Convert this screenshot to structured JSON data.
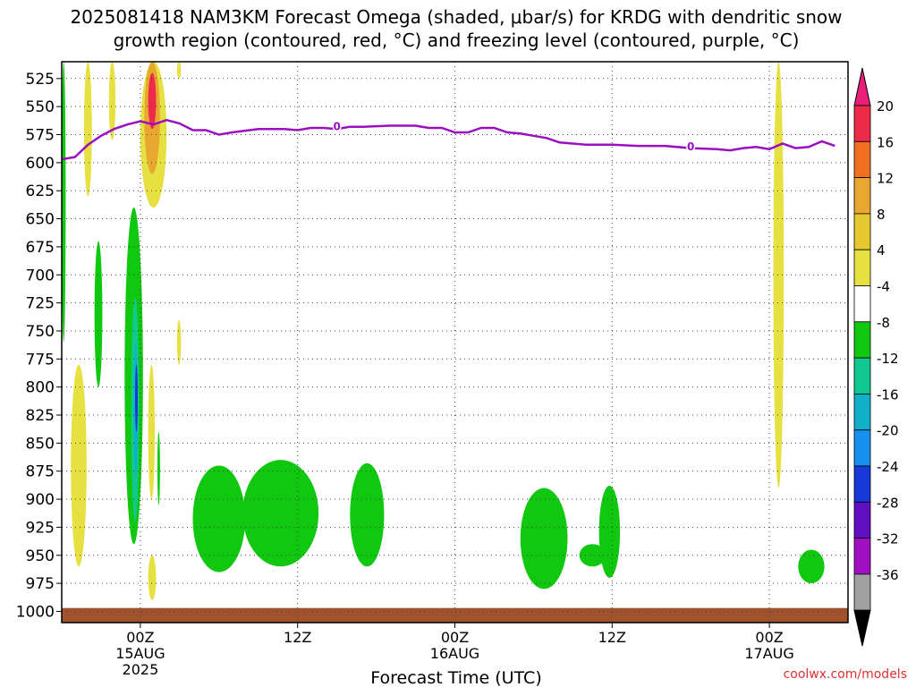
{
  "chart_data": {
    "type": "heatmap",
    "title_line1": "2025081418 NAM3KM Forecast Omega (shaded, μbar/s) for KRDG with dendritic snow",
    "title_line2": "growth region (contoured, red, °C) and freezing level (contoured, purple, °C)",
    "xlabel": "Forecast Time (UTC)",
    "ylabel": "",
    "credit": "coolwx.com/models",
    "x_unit": "forecast hour",
    "xlim": [
      0,
      60
    ],
    "ylim": [
      1010,
      510
    ],
    "y_ticks": [
      525,
      550,
      575,
      600,
      625,
      650,
      675,
      700,
      725,
      750,
      775,
      800,
      825,
      850,
      875,
      900,
      925,
      950,
      975,
      1000
    ],
    "x_ticks": [
      {
        "hour": 6,
        "label": "00Z",
        "date": "15AUG",
        "year": "2025"
      },
      {
        "hour": 18,
        "label": "12Z",
        "date": "",
        "year": ""
      },
      {
        "hour": 30,
        "label": "00Z",
        "date": "16AUG",
        "year": ""
      },
      {
        "hour": 42,
        "label": "12Z",
        "date": "",
        "year": ""
      },
      {
        "hour": 54,
        "label": "00Z",
        "date": "17AUG",
        "year": ""
      }
    ],
    "grid": true,
    "colorbar": {
      "labels": [
        "20",
        "16",
        "12",
        "8",
        "4",
        "-4",
        "-8",
        "-12",
        "-16",
        "-20",
        "-24",
        "-28",
        "-32",
        "-36"
      ],
      "colors": [
        "#ee2a4a",
        "#f07020",
        "#e8a830",
        "#e8c830",
        "#e6e040",
        "#ffffff",
        "#10c810",
        "#10c890",
        "#10b0c8",
        "#1890f0",
        "#1838d8",
        "#6010c0",
        "#a010c0",
        "#a0a0a0"
      ],
      "top_arrow_color": "#e8207a",
      "bottom_arrow_color": "#000000"
    },
    "freezing_level": {
      "label": "0",
      "color": "#9a10c0",
      "points": [
        [
          0,
          597
        ],
        [
          1,
          595
        ],
        [
          2,
          584
        ],
        [
          3,
          576
        ],
        [
          4,
          570
        ],
        [
          5,
          566
        ],
        [
          6,
          563
        ],
        [
          7,
          566
        ],
        [
          8,
          562
        ],
        [
          9,
          565
        ],
        [
          10,
          571
        ],
        [
          11,
          571
        ],
        [
          12,
          575
        ],
        [
          13,
          573
        ],
        [
          15,
          570
        ],
        [
          17,
          570
        ],
        [
          18,
          571
        ],
        [
          19,
          569
        ],
        [
          20,
          569
        ],
        [
          21,
          570
        ],
        [
          22,
          568
        ],
        [
          23,
          568
        ],
        [
          25,
          567
        ],
        [
          27,
          567
        ],
        [
          28,
          569
        ],
        [
          29,
          569
        ],
        [
          30,
          573
        ],
        [
          31,
          573
        ],
        [
          32,
          569
        ],
        [
          33,
          569
        ],
        [
          34,
          573
        ],
        [
          35,
          574
        ],
        [
          36,
          576
        ],
        [
          37,
          578
        ],
        [
          38,
          582
        ],
        [
          39,
          583
        ],
        [
          40,
          584
        ],
        [
          42,
          584
        ],
        [
          44,
          585
        ],
        [
          46,
          585
        ],
        [
          48,
          587
        ],
        [
          50,
          588
        ],
        [
          51,
          589
        ],
        [
          52,
          587
        ],
        [
          53,
          586
        ],
        [
          54,
          588
        ],
        [
          55,
          583
        ],
        [
          56,
          587
        ],
        [
          57,
          586
        ],
        [
          58,
          581
        ],
        [
          59,
          585
        ]
      ],
      "label_positions": [
        [
          21,
          567
        ],
        [
          48,
          585
        ]
      ]
    },
    "omega_regions": [
      {
        "x": [
          0,
          0.3
        ],
        "y": [
          510,
          760
        ],
        "value": -6,
        "color": "#10c810"
      },
      {
        "x": [
          1.7,
          2.3
        ],
        "y": [
          510,
          630
        ],
        "value": 5,
        "color": "#e6e040"
      },
      {
        "x": [
          3.6,
          4.1
        ],
        "y": [
          510,
          580
        ],
        "value": 5,
        "color": "#e6e040"
      },
      {
        "x": [
          6,
          8
        ],
        "y": [
          510,
          640
        ],
        "value": 5,
        "color": "#e6e040"
      },
      {
        "x": [
          6.3,
          7.5
        ],
        "y": [
          510,
          610
        ],
        "value": 11,
        "color": "#e8a830"
      },
      {
        "x": [
          6.6,
          7.2
        ],
        "y": [
          520,
          570
        ],
        "value": 18,
        "color": "#ee2a4a"
      },
      {
        "x": [
          8.8,
          9.1
        ],
        "y": [
          510,
          525
        ],
        "value": 5,
        "color": "#e6e040"
      },
      {
        "x": [
          0.7,
          1.9
        ],
        "y": [
          780,
          960
        ],
        "value": 5,
        "color": "#e6e040"
      },
      {
        "x": [
          2.5,
          3.1
        ],
        "y": [
          670,
          800
        ],
        "value": -6,
        "color": "#10c810"
      },
      {
        "x": [
          4.8,
          6.2
        ],
        "y": [
          640,
          940
        ],
        "value": -6,
        "color": "#10c810"
      },
      {
        "x": [
          5.3,
          5.9
        ],
        "y": [
          720,
          920
        ],
        "value": -11,
        "color": "#10c890"
      },
      {
        "x": [
          5.5,
          5.8
        ],
        "y": [
          760,
          880
        ],
        "value": -15,
        "color": "#10b0c8"
      },
      {
        "x": [
          5.6,
          5.8
        ],
        "y": [
          780,
          840
        ],
        "value": -22,
        "color": "#1838d8"
      },
      {
        "x": [
          6.6,
          7.1
        ],
        "y": [
          780,
          900
        ],
        "value": 5,
        "color": "#e6e040"
      },
      {
        "x": [
          7.3,
          7.5
        ],
        "y": [
          840,
          905
        ],
        "value": -6,
        "color": "#10c810"
      },
      {
        "x": [
          6.6,
          7.2
        ],
        "y": [
          950,
          990
        ],
        "value": 5,
        "color": "#e6e040"
      },
      {
        "x": [
          8.8,
          9.1
        ],
        "y": [
          740,
          780
        ],
        "value": 5,
        "color": "#e6e040"
      },
      {
        "x": [
          10,
          14
        ],
        "y": [
          870,
          965
        ],
        "value": -6,
        "color": "#10c810"
      },
      {
        "x": [
          13.8,
          19.6
        ],
        "y": [
          865,
          960
        ],
        "value": -6,
        "color": "#10c810"
      },
      {
        "x": [
          22,
          24.6
        ],
        "y": [
          868,
          960
        ],
        "value": -6,
        "color": "#10c810"
      },
      {
        "x": [
          35,
          38.6
        ],
        "y": [
          890,
          980
        ],
        "value": -6,
        "color": "#10c810"
      },
      {
        "x": [
          39.5,
          41.5
        ],
        "y": [
          940,
          960
        ],
        "value": -6,
        "color": "#10c810"
      },
      {
        "x": [
          41,
          42.6
        ],
        "y": [
          888,
          970
        ],
        "value": -6,
        "color": "#10c810"
      },
      {
        "x": [
          54.3,
          55.1
        ],
        "y": [
          510,
          890
        ],
        "value": 5,
        "color": "#e6e040"
      },
      {
        "x": [
          56.2,
          58.2
        ],
        "y": [
          945,
          975
        ],
        "value": -6,
        "color": "#10c810"
      }
    ],
    "terrain": {
      "color": "#a0522d",
      "top_pressure": 997,
      "bottom_pressure": 1010
    }
  }
}
